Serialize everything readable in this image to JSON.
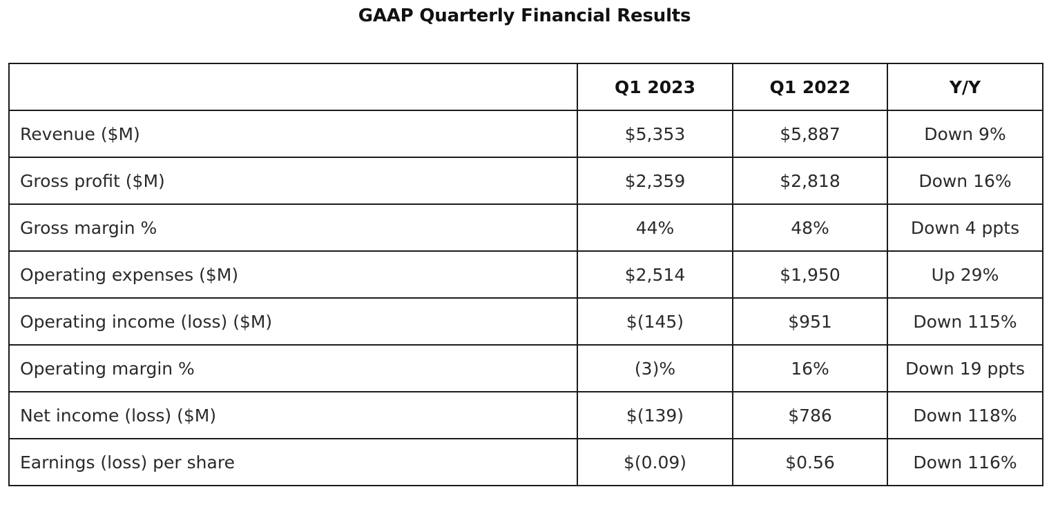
{
  "title": "GAAP Quarterly Financial Results",
  "table": {
    "headers": [
      "",
      "Q1 2023",
      "Q1 2022",
      "Y/Y"
    ],
    "rows": [
      {
        "label": "Revenue ($M)",
        "q1_2023": "$5,353",
        "q1_2022": "$5,887",
        "yy": "Down 9%"
      },
      {
        "label": "Gross profit ($M)",
        "q1_2023": "$2,359",
        "q1_2022": "$2,818",
        "yy": "Down 16%"
      },
      {
        "label": "Gross margin %",
        "q1_2023": "44%",
        "q1_2022": "48%",
        "yy": "Down 4 ppts"
      },
      {
        "label": "Operating expenses ($M)",
        "q1_2023": "$2,514",
        "q1_2022": "$1,950",
        "yy": "Up 29%"
      },
      {
        "label": "Operating income (loss) ($M)",
        "q1_2023": "$(145)",
        "q1_2022": "$951",
        "yy": "Down 115%"
      },
      {
        "label": "Operating margin %",
        "q1_2023": "(3)%",
        "q1_2022": "16%",
        "yy": "Down 19 ppts"
      },
      {
        "label": "Net income (loss) ($M)",
        "q1_2023": "$(139)",
        "q1_2022": "$786",
        "yy": "Down 118%"
      },
      {
        "label": "Earnings (loss) per share",
        "q1_2023": "$(0.09)",
        "q1_2022": "$0.56",
        "yy": "Down 116%"
      }
    ]
  }
}
